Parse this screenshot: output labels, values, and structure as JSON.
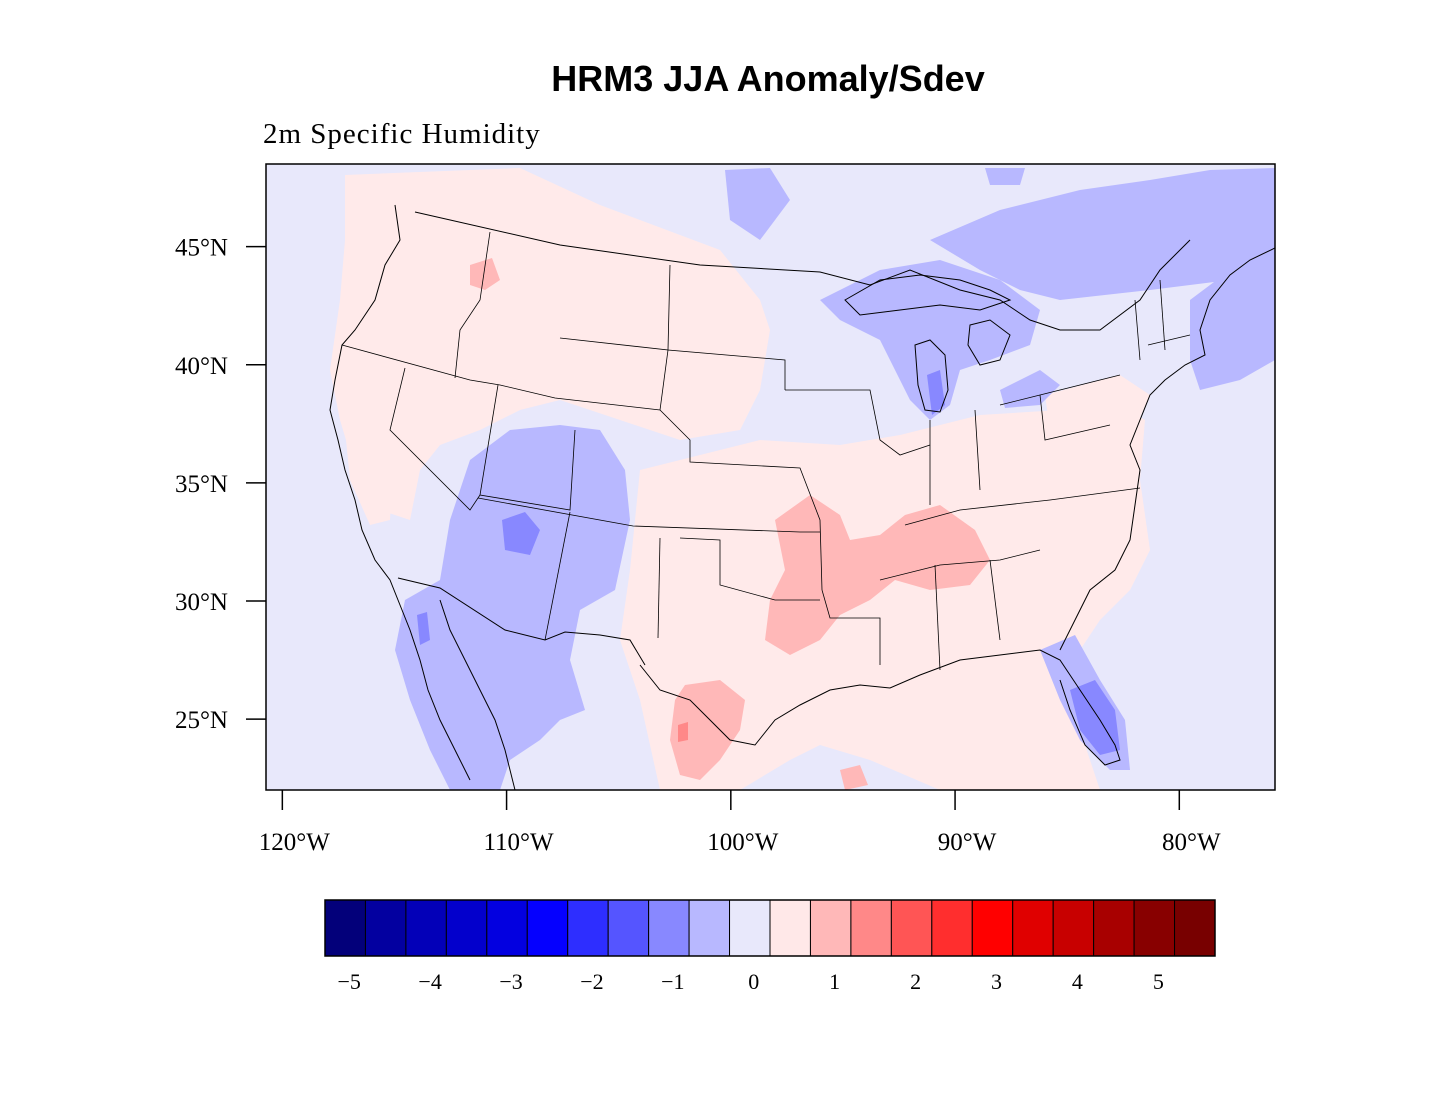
{
  "title": "HRM3 JJA Anomaly/Sdev",
  "subtitle": "2m Specific Humidity",
  "map": {
    "lon_range": [
      -120.5,
      -76.0
    ],
    "lat_range": [
      22.0,
      48.5
    ],
    "lat_ticks": [
      {
        "value": 45,
        "label": "45°N"
      },
      {
        "value": 40,
        "label": "40°N"
      },
      {
        "value": 35,
        "label": "35°N"
      },
      {
        "value": 30,
        "label": "30°N"
      },
      {
        "value": 25,
        "label": "25°N"
      }
    ],
    "lon_ticks": [
      {
        "value": -120,
        "label": "120°W"
      },
      {
        "value": -110,
        "label": "110°W"
      },
      {
        "value": -100,
        "label": "100°W"
      },
      {
        "value": -90,
        "label": "90°W"
      },
      {
        "value": -80,
        "label": "80°W"
      }
    ],
    "background_color": "#e8e8fb"
  },
  "colorbar": {
    "colors": [
      "#03007a",
      "#0300a0",
      "#0300b8",
      "#0300cc",
      "#0300e0",
      "#0500ff",
      "#2e2eff",
      "#5555ff",
      "#8888ff",
      "#b8b8ff",
      "#e8e8fb",
      "#ffe8e8",
      "#ffb8b8",
      "#ff8888",
      "#ff5555",
      "#ff2e2e",
      "#ff0000",
      "#e00000",
      "#c80000",
      "#a80000",
      "#880000",
      "#780000"
    ],
    "labels": [
      {
        "text": "−5",
        "boundary": 1
      },
      {
        "text": "−4",
        "boundary": 3
      },
      {
        "text": "−3",
        "boundary": 5
      },
      {
        "text": "−2",
        "boundary": 7
      },
      {
        "text": "−1",
        "boundary": 9
      },
      {
        "text": "0",
        "boundary": 11
      },
      {
        "text": "1",
        "boundary": 13
      },
      {
        "text": "2",
        "boundary": 15
      },
      {
        "text": "3",
        "boundary": 17
      },
      {
        "text": "4",
        "boundary": 19
      },
      {
        "text": "5",
        "boundary": 21
      }
    ]
  }
}
